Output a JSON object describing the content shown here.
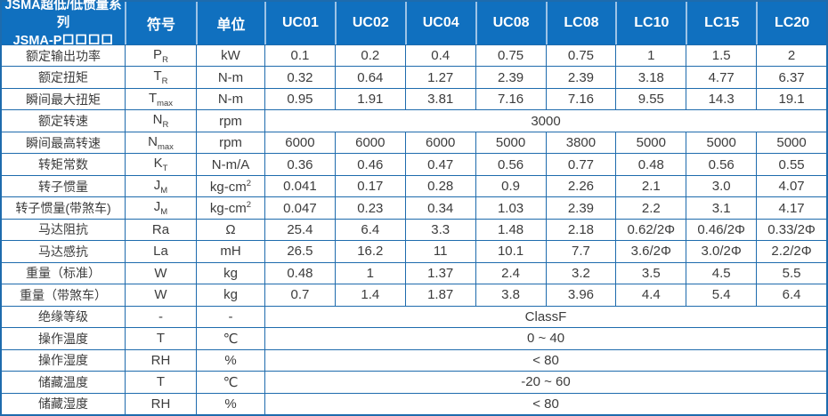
{
  "table": {
    "title_line1": "JSMA超低/低惯量系列",
    "title_line2": "JSMA-P口口口口",
    "symbol_header": "符号",
    "unit_header": "单位",
    "model_columns": [
      "UC01",
      "UC02",
      "UC04",
      "UC08",
      "LC08",
      "LC10",
      "LC15",
      "LC20"
    ],
    "rows": [
      {
        "label": "额定输出功率",
        "symbol": "P",
        "symbol_sub": "R",
        "unit": "kW",
        "values": [
          "0.1",
          "0.2",
          "0.4",
          "0.75",
          "0.75",
          "1",
          "1.5",
          "2"
        ]
      },
      {
        "label": "额定扭矩",
        "symbol": "T",
        "symbol_sub": "R",
        "unit": "N-m",
        "values": [
          "0.32",
          "0.64",
          "1.27",
          "2.39",
          "2.39",
          "3.18",
          "4.77",
          "6.37"
        ]
      },
      {
        "label": "瞬间最大扭矩",
        "symbol": "T",
        "symbol_sub": "max",
        "unit": "N-m",
        "values": [
          "0.95",
          "1.91",
          "3.81",
          "7.16",
          "7.16",
          "9.55",
          "14.3",
          "19.1"
        ]
      },
      {
        "label": "额定转速",
        "symbol": "N",
        "symbol_sub": "R",
        "unit": "rpm",
        "span_value": "3000"
      },
      {
        "label": "瞬间最高转速",
        "symbol": "N",
        "symbol_sub": "max",
        "unit": "rpm",
        "values": [
          "6000",
          "6000",
          "6000",
          "5000",
          "3800",
          "5000",
          "5000",
          "5000"
        ]
      },
      {
        "label": "转矩常数",
        "symbol": "K",
        "symbol_sub": "T",
        "unit": "N-m/A",
        "values": [
          "0.36",
          "0.46",
          "0.47",
          "0.56",
          "0.77",
          "0.48",
          "0.56",
          "0.55"
        ]
      },
      {
        "label": "转子惯量",
        "symbol": "J",
        "symbol_sub": "M",
        "unit": "kg-cm",
        "unit_sup": "2",
        "values": [
          "0.041",
          "0.17",
          "0.28",
          "0.9",
          "2.26",
          "2.1",
          "3.0",
          "4.07"
        ]
      },
      {
        "label": "转子惯量(带煞车)",
        "symbol": "J",
        "symbol_sub": "M",
        "unit": "kg-cm",
        "unit_sup": "2",
        "values": [
          "0.047",
          "0.23",
          "0.34",
          "1.03",
          "2.39",
          "2.2",
          "3.1",
          "4.17"
        ]
      },
      {
        "label": "马达阻抗",
        "symbol": "Ra",
        "unit": "Ω",
        "values": [
          "25.4",
          "6.4",
          "3.3",
          "1.48",
          "2.18",
          "0.62/2Φ",
          "0.46/2Φ",
          "0.33/2Φ"
        ]
      },
      {
        "label": "马达感抗",
        "symbol": "La",
        "unit": "mH",
        "values": [
          "26.5",
          "16.2",
          "11",
          "10.1",
          "7.7",
          "3.6/2Φ",
          "3.0/2Φ",
          "2.2/2Φ"
        ]
      },
      {
        "label": "重量（标准）",
        "symbol": "W",
        "unit": "kg",
        "values": [
          "0.48",
          "1",
          "1.37",
          "2.4",
          "3.2",
          "3.5",
          "4.5",
          "5.5"
        ]
      },
      {
        "label": "重量（带煞车）",
        "symbol": "W",
        "unit": "kg",
        "values": [
          "0.7",
          "1.4",
          "1.87",
          "3.8",
          "3.96",
          "4.4",
          "5.4",
          "6.4"
        ]
      },
      {
        "label": "绝缘等级",
        "symbol": "-",
        "unit": "-",
        "span_value": "ClassF"
      },
      {
        "label": "操作温度",
        "symbol": "T",
        "unit": "℃",
        "span_value": "0 ~ 40"
      },
      {
        "label": "操作湿度",
        "symbol": "RH",
        "unit": "%",
        "span_value": "< 80"
      },
      {
        "label": "储藏温度",
        "symbol": "T",
        "unit": "℃",
        "span_value": "-20 ~ 60"
      },
      {
        "label": "储藏湿度",
        "symbol": "RH",
        "unit": "%",
        "span_value": "< 80"
      }
    ]
  },
  "colors": {
    "header_bg": "#1070bf",
    "header_text": "#ffffff",
    "header_separator": "#9dc3e6",
    "grid_line": "#1e6bad",
    "body_text": "#3c3c3c"
  }
}
